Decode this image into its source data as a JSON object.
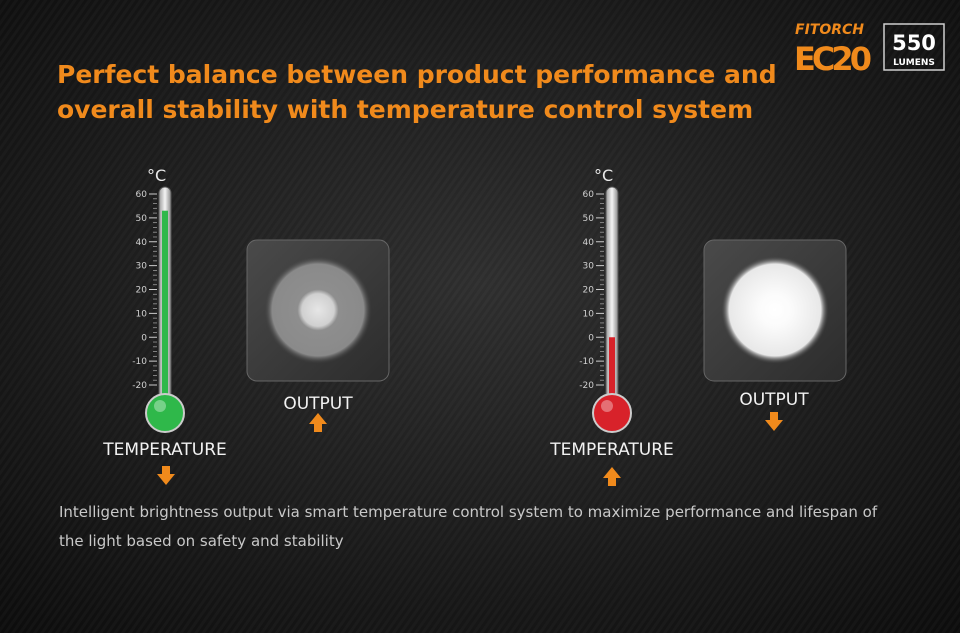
{
  "logo": {
    "brand": "FITORCH",
    "model": "EC20",
    "lumens": "550",
    "lumens_unit": "LUMENS"
  },
  "title": [
    "Perfect balance between product performance and",
    "overall stability with temperature control system"
  ],
  "panels": [
    {
      "unit": "°C",
      "scale": [
        60,
        50,
        40,
        30,
        20,
        10,
        0,
        -10,
        -20
      ],
      "level": 53,
      "color": "#2fb84a",
      "temperature_label": "TEMPERATURE",
      "output_label": "OUTPUT"
    },
    {
      "unit": "°C",
      "scale": [
        60,
        50,
        40,
        30,
        20,
        10,
        0,
        -10,
        -20
      ],
      "level": 0,
      "color": "#d8222a",
      "temperature_label": "TEMPERATURE",
      "output_label": "OUTPUT"
    }
  ],
  "description": [
    "Intelligent brightness output via smart temperature control system to maximize performance and lifespan of",
    "the light based on safety and stability"
  ]
}
